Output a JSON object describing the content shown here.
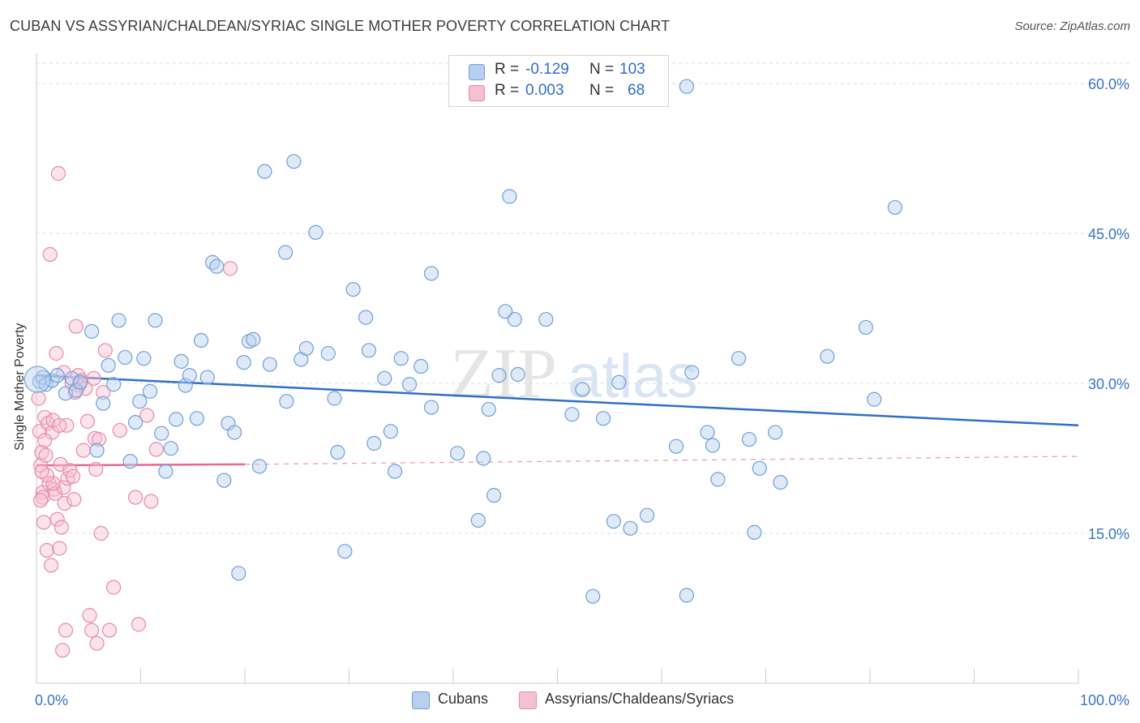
{
  "header": {
    "title": "CUBAN VS ASSYRIAN/CHALDEAN/SYRIAC SINGLE MOTHER POVERTY CORRELATION CHART",
    "source": "Source: ZipAtlas.com"
  },
  "legend": {
    "rows": [
      {
        "r_label": "R = ",
        "r_value": "-0.129",
        "n_label": "N = ",
        "n_value": "103"
      },
      {
        "r_label": "R = ",
        "r_value": "0.003",
        "n_label": "N = ",
        "n_value": "68"
      }
    ],
    "bottom": [
      "Cubans",
      "Assyrians/Chaldeans/Syriacs"
    ]
  },
  "watermark": {
    "zip": "ZIP",
    "atlas": "atlas"
  },
  "colors": {
    "blue_fill": "#b7d0f0",
    "blue_stroke": "#6f9fd8",
    "blue_line": "#2f6fc8",
    "pink_fill": "#f5c0d2",
    "pink_stroke": "#e88aaa",
    "pink_line": "#e8678f",
    "axis_label": "#3b73c8",
    "grid": "#dcdcdc"
  },
  "chart_data": {
    "type": "scatter",
    "title": "CUBAN VS ASSYRIAN/CHALDEAN/SYRIAC SINGLE MOTHER POVERTY CORRELATION CHART",
    "xlabel": "",
    "ylabel": "Single Mother Poverty",
    "xlim": [
      0,
      100
    ],
    "ylim": [
      0,
      63
    ],
    "x_tick_labels": [
      "0.0%",
      "100.0%"
    ],
    "y_ticks": [
      15,
      30,
      45,
      60
    ],
    "y_tick_labels": [
      "15.0%",
      "30.0%",
      "45.0%",
      "60.0%"
    ],
    "grid": true,
    "series": [
      {
        "name": "Cubans",
        "color": "#6f9fd8",
        "r": -0.129,
        "n": 103,
        "trend": {
          "x": [
            0,
            100
          ],
          "y": [
            30.8,
            25.8
          ]
        },
        "points": [
          [
            0.3,
            30.2
          ],
          [
            0.6,
            30.6
          ],
          [
            0.9,
            29.9
          ],
          [
            1.5,
            30.3
          ],
          [
            2.0,
            30.8
          ],
          [
            2.8,
            29.0
          ],
          [
            3.4,
            30.5
          ],
          [
            3.8,
            29.3
          ],
          [
            4.2,
            30.1
          ],
          [
            5.3,
            35.2
          ],
          [
            5.8,
            23.3
          ],
          [
            6.4,
            28.0
          ],
          [
            6.9,
            31.8
          ],
          [
            7.4,
            29.9
          ],
          [
            7.9,
            36.3
          ],
          [
            8.5,
            32.6
          ],
          [
            9.0,
            22.2
          ],
          [
            9.5,
            26.1
          ],
          [
            9.9,
            28.2
          ],
          [
            10.3,
            32.5
          ],
          [
            10.9,
            29.2
          ],
          [
            11.4,
            36.3
          ],
          [
            12.0,
            25.0
          ],
          [
            12.4,
            21.2
          ],
          [
            12.9,
            23.5
          ],
          [
            13.4,
            26.4
          ],
          [
            13.9,
            32.2
          ],
          [
            14.3,
            29.8
          ],
          [
            14.7,
            30.8
          ],
          [
            15.4,
            26.5
          ],
          [
            15.8,
            34.3
          ],
          [
            16.4,
            30.6
          ],
          [
            16.9,
            42.1
          ],
          [
            17.3,
            41.7
          ],
          [
            18.0,
            20.3
          ],
          [
            18.4,
            26.0
          ],
          [
            19.0,
            25.1
          ],
          [
            19.4,
            11.0
          ],
          [
            19.9,
            32.1
          ],
          [
            20.4,
            34.2
          ],
          [
            20.8,
            34.4
          ],
          [
            21.4,
            21.7
          ],
          [
            21.9,
            51.2
          ],
          [
            22.4,
            31.9
          ],
          [
            24.0,
            28.2
          ],
          [
            23.9,
            43.1
          ],
          [
            24.7,
            52.2
          ],
          [
            25.4,
            32.4
          ],
          [
            25.9,
            33.5
          ],
          [
            26.8,
            45.1
          ],
          [
            28.0,
            33.0
          ],
          [
            28.6,
            28.5
          ],
          [
            28.9,
            23.1
          ],
          [
            29.6,
            13.2
          ],
          [
            30.4,
            39.4
          ],
          [
            31.6,
            36.6
          ],
          [
            31.9,
            33.3
          ],
          [
            32.4,
            24.0
          ],
          [
            33.4,
            30.5
          ],
          [
            34.0,
            25.2
          ],
          [
            34.4,
            21.2
          ],
          [
            35.0,
            32.5
          ],
          [
            35.8,
            29.9
          ],
          [
            36.9,
            31.7
          ],
          [
            37.9,
            27.6
          ],
          [
            37.9,
            41.0
          ],
          [
            40.4,
            23.0
          ],
          [
            42.4,
            16.3
          ],
          [
            42.9,
            22.5
          ],
          [
            43.4,
            27.4
          ],
          [
            43.9,
            18.8
          ],
          [
            44.4,
            30.8
          ],
          [
            45.0,
            37.2
          ],
          [
            45.4,
            48.7
          ],
          [
            45.9,
            36.4
          ],
          [
            46.2,
            30.9
          ],
          [
            48.9,
            36.4
          ],
          [
            51.4,
            26.9
          ],
          [
            52.4,
            29.4
          ],
          [
            53.4,
            8.7
          ],
          [
            54.4,
            26.5
          ],
          [
            55.4,
            16.2
          ],
          [
            55.9,
            30.1
          ],
          [
            57.0,
            15.5
          ],
          [
            58.6,
            16.8
          ],
          [
            61.4,
            23.7
          ],
          [
            62.4,
            8.8
          ],
          [
            62.4,
            59.7
          ],
          [
            62.9,
            31.1
          ],
          [
            64.4,
            25.1
          ],
          [
            64.9,
            23.8
          ],
          [
            65.4,
            20.4
          ],
          [
            67.4,
            32.5
          ],
          [
            68.4,
            24.4
          ],
          [
            68.9,
            15.1
          ],
          [
            69.4,
            21.5
          ],
          [
            70.9,
            25.1
          ],
          [
            71.4,
            20.1
          ],
          [
            75.9,
            32.7
          ],
          [
            79.6,
            35.6
          ],
          [
            80.4,
            28.4
          ],
          [
            82.4,
            47.6
          ],
          [
            0.1,
            30.4
          ]
        ]
      },
      {
        "name": "Assyrians/Chaldeans/Syriacs",
        "color": "#e88aaa",
        "r": 0.003,
        "n": 68,
        "trend": {
          "x_solid": [
            0,
            20
          ],
          "y_solid": [
            21.8,
            21.9
          ],
          "x_dashed": [
            20,
            100
          ],
          "y_dashed": [
            21.9,
            22.7
          ]
        },
        "points": [
          [
            0.2,
            28.5
          ],
          [
            0.3,
            25.2
          ],
          [
            0.4,
            21.8
          ],
          [
            0.5,
            23.1
          ],
          [
            0.6,
            19.1
          ],
          [
            0.6,
            18.6
          ],
          [
            0.7,
            16.1
          ],
          [
            0.8,
            26.6
          ],
          [
            0.9,
            22.8
          ],
          [
            1.0,
            13.3
          ],
          [
            1.1,
            26.0
          ],
          [
            1.2,
            20.0
          ],
          [
            1.3,
            42.9
          ],
          [
            1.4,
            11.8
          ],
          [
            1.5,
            25.1
          ],
          [
            1.6,
            26.3
          ],
          [
            1.7,
            19.4
          ],
          [
            1.8,
            19.0
          ],
          [
            1.9,
            33.0
          ],
          [
            2.0,
            16.4
          ],
          [
            2.1,
            51.0
          ],
          [
            2.2,
            13.5
          ],
          [
            2.3,
            21.9
          ],
          [
            2.4,
            15.6
          ],
          [
            2.5,
            3.3
          ],
          [
            2.6,
            31.1
          ],
          [
            2.6,
            19.6
          ],
          [
            2.7,
            18.0
          ],
          [
            2.8,
            5.3
          ],
          [
            2.9,
            25.8
          ],
          [
            3.0,
            20.5
          ],
          [
            3.2,
            21.3
          ],
          [
            3.4,
            30.0
          ],
          [
            3.5,
            20.7
          ],
          [
            3.6,
            18.4
          ],
          [
            3.8,
            35.7
          ],
          [
            4.0,
            30.8
          ],
          [
            4.1,
            29.8
          ],
          [
            4.3,
            30.3
          ],
          [
            4.5,
            23.3
          ],
          [
            4.7,
            29.5
          ],
          [
            4.9,
            26.2
          ],
          [
            5.1,
            6.8
          ],
          [
            5.3,
            5.3
          ],
          [
            5.5,
            30.5
          ],
          [
            5.6,
            24.5
          ],
          [
            5.7,
            21.4
          ],
          [
            5.8,
            4.0
          ],
          [
            6.0,
            24.4
          ],
          [
            6.2,
            15.0
          ],
          [
            6.4,
            29.1
          ],
          [
            6.6,
            33.3
          ],
          [
            7.0,
            5.3
          ],
          [
            7.4,
            9.6
          ],
          [
            8.0,
            25.3
          ],
          [
            9.5,
            18.6
          ],
          [
            9.8,
            5.9
          ],
          [
            10.6,
            26.8
          ],
          [
            11.0,
            18.2
          ],
          [
            11.5,
            23.4
          ],
          [
            18.6,
            41.5
          ],
          [
            0.4,
            18.3
          ],
          [
            0.8,
            24.3
          ],
          [
            1.6,
            20.0
          ],
          [
            2.2,
            25.8
          ],
          [
            3.7,
            29.1
          ],
          [
            1.0,
            20.8
          ],
          [
            0.5,
            21.2
          ]
        ]
      }
    ]
  }
}
